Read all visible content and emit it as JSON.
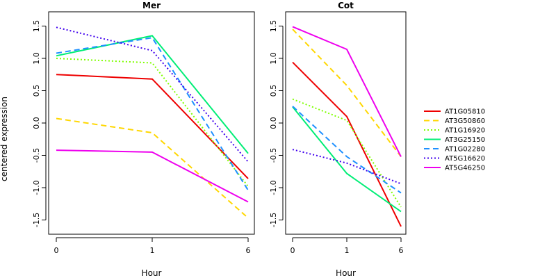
{
  "chart_data": {
    "type": "line",
    "ylabel": "centered expression",
    "shared_legend": "right",
    "series_styles": [
      {
        "name": "AT1G05810",
        "color": "#ee0000",
        "dash": "solid"
      },
      {
        "name": "AT3G50860",
        "color": "#ffd700",
        "dash": "dashed"
      },
      {
        "name": "AT1G16920",
        "color": "#7fff00",
        "dash": "dotted"
      },
      {
        "name": "AT3G25150",
        "color": "#00ee76",
        "dash": "solid"
      },
      {
        "name": "AT1G02280",
        "color": "#1e90ff",
        "dash": "dashed"
      },
      {
        "name": "AT5G16620",
        "color": "#4000ee",
        "dash": "dotted"
      },
      {
        "name": "AT5G46250",
        "color": "#ee00ee",
        "dash": "solid"
      }
    ],
    "panels": [
      {
        "title": "Mer",
        "xlabel": "Hour",
        "categories": [
          "0",
          "1",
          "6"
        ],
        "yticks": [
          -1.5,
          -1.0,
          -0.5,
          0.0,
          0.5,
          1.0,
          1.5
        ],
        "ylim": [
          -1.72,
          1.72
        ],
        "series": [
          {
            "name": "AT1G05810",
            "values": [
              0.75,
              0.68,
              -0.86
            ]
          },
          {
            "name": "AT3G50860",
            "values": [
              0.07,
              -0.15,
              -1.47
            ]
          },
          {
            "name": "AT1G16920",
            "values": [
              1.0,
              0.93,
              -0.98
            ]
          },
          {
            "name": "AT3G25150",
            "values": [
              1.04,
              1.35,
              -0.47
            ]
          },
          {
            "name": "AT1G02280",
            "values": [
              1.08,
              1.32,
              -1.04
            ]
          },
          {
            "name": "AT5G16620",
            "values": [
              1.48,
              1.12,
              -0.6
            ]
          },
          {
            "name": "AT5G46250",
            "values": [
              -0.42,
              -0.45,
              -1.22
            ]
          }
        ]
      },
      {
        "title": "Cot",
        "xlabel": "Hour",
        "categories": [
          "0",
          "1",
          "6"
        ],
        "yticks": [
          -1.5,
          -1.0,
          -0.5,
          0.0,
          0.5,
          1.0,
          1.5
        ],
        "ylim": [
          -1.72,
          1.72
        ],
        "series": [
          {
            "name": "AT1G05810",
            "values": [
              0.94,
              0.1,
              -1.6
            ]
          },
          {
            "name": "AT3G50860",
            "values": [
              1.45,
              0.58,
              -0.52
            ]
          },
          {
            "name": "AT1G16920",
            "values": [
              0.37,
              0.04,
              -1.3
            ]
          },
          {
            "name": "AT3G25150",
            "values": [
              0.25,
              -0.78,
              -1.37
            ]
          },
          {
            "name": "AT1G02280",
            "values": [
              0.26,
              -0.52,
              -1.08
            ]
          },
          {
            "name": "AT5G16620",
            "values": [
              -0.41,
              -0.62,
              -0.94
            ]
          },
          {
            "name": "AT5G46250",
            "values": [
              1.49,
              1.14,
              -0.52
            ]
          }
        ]
      }
    ]
  }
}
